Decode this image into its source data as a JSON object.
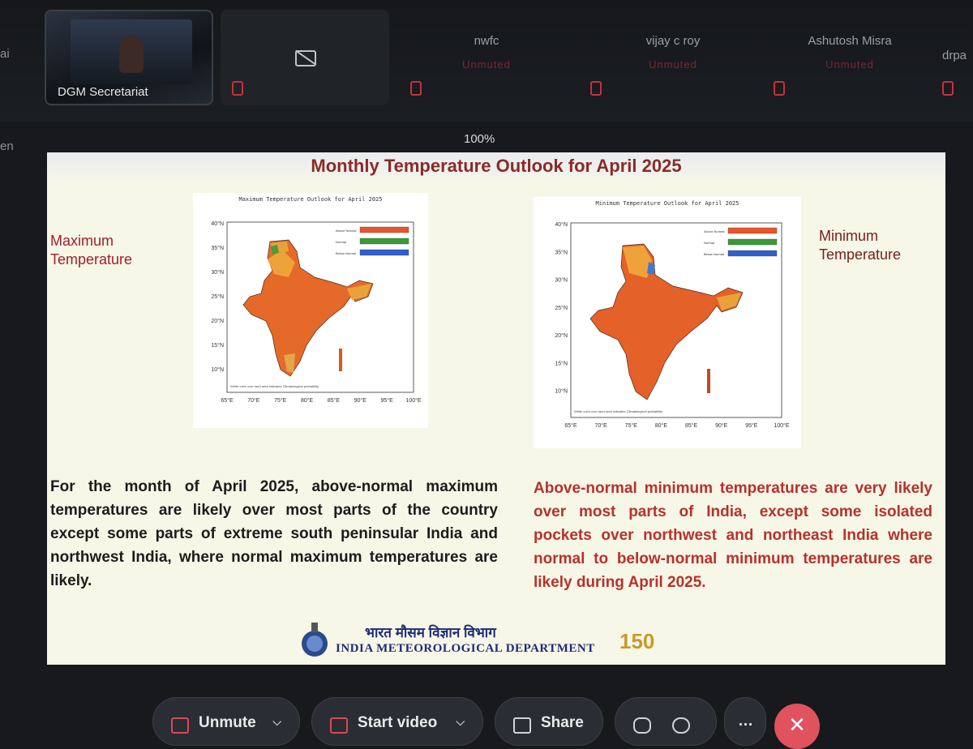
{
  "participants": [
    {
      "name": "DGM Secretariat",
      "sub": ""
    },
    {
      "name": "",
      "sub": ""
    },
    {
      "name": "nwfc",
      "sub": "Unmuted"
    },
    {
      "name": "vijay c roy",
      "sub": "Unmuted"
    },
    {
      "name": "Ashutosh Misra",
      "sub": "Unmuted"
    },
    {
      "name": "drpa",
      "sub": ""
    }
  ],
  "edge_labels": {
    "left_top": "ai",
    "left_mid": "en"
  },
  "zoom_level": "100%",
  "slide": {
    "title": "Monthly Temperature Outlook for April 2025",
    "max_label_line1": "Maximum",
    "max_label_line2": "Temperature",
    "min_label_line1": "Minimum",
    "min_label_line2": "Temperature",
    "left_paragraph": "For the month of April 2025, above-normal maximum temperatures are likely over most parts of the country except some parts of extreme south peninsular India and northwest India, where normal maximum temperatures are likely.",
    "right_paragraph": "Above-normal minimum temperatures are very likely over most parts of India, except some isolated pockets over northwest and northeast India where normal to below-normal minimum temperatures are likely during April 2025.",
    "org_hindi": "भारत मौसम विज्ञान विभाग",
    "org_english": "INDIA METEOROLOGICAL DEPARTMENT",
    "anniversary": "150"
  },
  "chart_data": [
    {
      "type": "map",
      "title": "Maximum Temperature Outlook for April 2025",
      "x_ticks": [
        "65°E",
        "70°E",
        "75°E",
        "80°E",
        "85°E",
        "90°E",
        "95°E",
        "100°E"
      ],
      "y_ticks": [
        "40°N",
        "35°N",
        "30°N",
        "25°N",
        "20°N",
        "15°N",
        "10°N"
      ],
      "legend": [
        "Above Normal",
        "Normal",
        "Below Normal"
      ],
      "legend_colors": [
        "#e8552a",
        "#3a9a3a",
        "#2f5fd0"
      ],
      "footnote": "White color over land area indicates Climatological probability"
    },
    {
      "type": "map",
      "title": "Minimum Temperature Outlook for April 2025",
      "x_ticks": [
        "65°E",
        "70°E",
        "75°E",
        "80°E",
        "85°E",
        "90°E",
        "95°E",
        "100°E"
      ],
      "y_ticks": [
        "40°N",
        "35°N",
        "30°N",
        "25°N",
        "20°N",
        "15°N",
        "10°N"
      ],
      "legend": [
        "Above Normal",
        "Normal",
        "Below Normal"
      ],
      "legend_colors": [
        "#e8552a",
        "#3a9a3a",
        "#2f5fd0"
      ],
      "footnote": "White color over land area indicates Climatological probability"
    }
  ],
  "controls": {
    "unmute": "Unmute",
    "start_video": "Start video",
    "share": "Share",
    "more": "…",
    "end": "✕"
  }
}
